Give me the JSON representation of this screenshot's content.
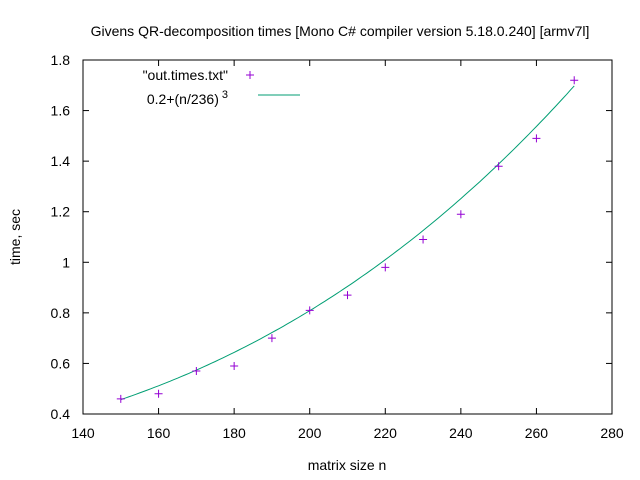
{
  "chart_data": {
    "type": "scatter",
    "title": "Givens QR-decomposition times [Mono C# compiler version 5.18.0.240] [armv7l]",
    "xlabel": "matrix size n",
    "ylabel": "time, sec",
    "xlim": [
      140,
      280
    ],
    "ylim": [
      0.4,
      1.8
    ],
    "xticks": [
      140,
      160,
      180,
      200,
      220,
      240,
      260,
      280
    ],
    "yticks": [
      0.4,
      0.6,
      0.8,
      1,
      1.2,
      1.4,
      1.6,
      1.8
    ],
    "xtick_labels": [
      "140",
      "160",
      "180",
      "200",
      "220",
      "240",
      "260",
      "280"
    ],
    "ytick_labels": [
      "0.4",
      "0.6",
      "0.8",
      "1",
      "1.2",
      "1.4",
      "1.6",
      "1.8"
    ],
    "legend_position": "top-left",
    "series": [
      {
        "name": "\"out.times.txt\"",
        "kind": "points",
        "color": "#9400d3",
        "x": [
          150,
          160,
          170,
          180,
          190,
          200,
          210,
          220,
          230,
          240,
          250,
          260,
          270
        ],
        "y": [
          0.46,
          0.48,
          0.57,
          0.59,
          0.7,
          0.81,
          0.87,
          0.98,
          1.09,
          1.19,
          1.38,
          1.49,
          1.72
        ]
      },
      {
        "name": "0.2+(n/236)",
        "name_superscript": "3",
        "kind": "line",
        "color": "#009e73",
        "formula": {
          "offset": 0.2,
          "divisor": 236,
          "power": 3
        },
        "xrange": [
          150,
          270
        ]
      }
    ]
  }
}
